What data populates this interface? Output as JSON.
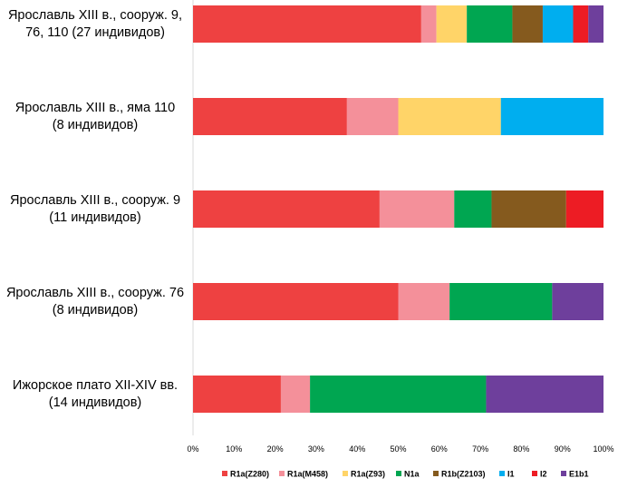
{
  "chart_data": {
    "type": "bar",
    "orientation": "horizontal",
    "stacked": true,
    "categories": [
      "Ярославль XIII в.,  сооруж. 9,\n76, 110   (27 индивидов)",
      "Ярославль XIII в.,  яма 110\n(8 индивидов)",
      "Ярославль XIII в., сооруж. 9\n(11 индивидов)",
      "Ярославль XIII в., сооруж. 76\n(8 индивидов)",
      "Ижорское плато XII-XIV вв.\n(14 индивидов)"
    ],
    "series": [
      {
        "name": "R1a(Z280)",
        "color": "#EE4141",
        "values": [
          55.6,
          37.5,
          45.5,
          50.0,
          21.4
        ]
      },
      {
        "name": "R1a(M458)",
        "color": "#F4909A",
        "values": [
          3.7,
          12.5,
          18.2,
          12.5,
          7.1
        ]
      },
      {
        "name": "R1a(Z93)",
        "color": "#FFD468",
        "values": [
          7.4,
          25.0,
          0,
          0,
          0
        ]
      },
      {
        "name": "N1a",
        "color": "#00A651",
        "values": [
          11.1,
          0,
          9.1,
          25.0,
          42.9
        ]
      },
      {
        "name": "R1b(Z2103)",
        "color": "#855A1E",
        "values": [
          7.4,
          0,
          18.2,
          0,
          0
        ]
      },
      {
        "name": "I1",
        "color": "#00AEEF",
        "values": [
          7.4,
          25.0,
          0,
          0,
          0
        ]
      },
      {
        "name": "I2",
        "color": "#ED1C24",
        "values": [
          3.7,
          0,
          9.1,
          0,
          0
        ]
      },
      {
        "name": "E1b1",
        "color": "#6E3F9C",
        "values": [
          3.7,
          0,
          0,
          12.5,
          28.6
        ]
      }
    ],
    "x_ticks": [
      "0%",
      "10%",
      "20%",
      "30%",
      "40%",
      "50%",
      "60%",
      "70%",
      "80%",
      "90%",
      "100%"
    ],
    "xlim": [
      0,
      100
    ],
    "grid": false,
    "legend_position": "bottom"
  }
}
